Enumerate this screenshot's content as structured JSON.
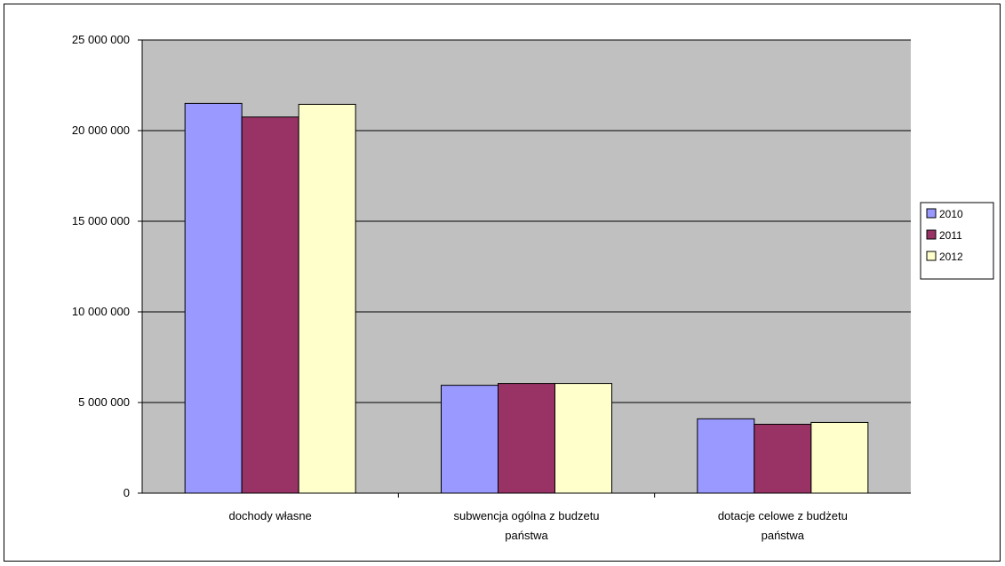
{
  "chart_data": {
    "type": "bar",
    "categories": [
      [
        "dochody własne"
      ],
      [
        "subwencja ogólna z budzetu",
        "państwa"
      ],
      [
        "dotacje celowe z budżetu",
        "państwa"
      ]
    ],
    "series": [
      {
        "name": "2010",
        "color": "#9999ff",
        "values": [
          21500000,
          5950000,
          4100000
        ]
      },
      {
        "name": "2011",
        "color": "#993366",
        "values": [
          20750000,
          6050000,
          3800000
        ]
      },
      {
        "name": "2012",
        "color": "#ffffcc",
        "values": [
          21450000,
          6050000,
          3900000
        ]
      }
    ],
    "yticks": [
      "0",
      "5 000 000",
      "10 000 000",
      "15 000 000",
      "20 000 000",
      "25 000 000"
    ],
    "ylim": [
      0,
      25000000
    ],
    "plot_background": "#c0c0c0",
    "grid": true,
    "legend_position": "right"
  }
}
